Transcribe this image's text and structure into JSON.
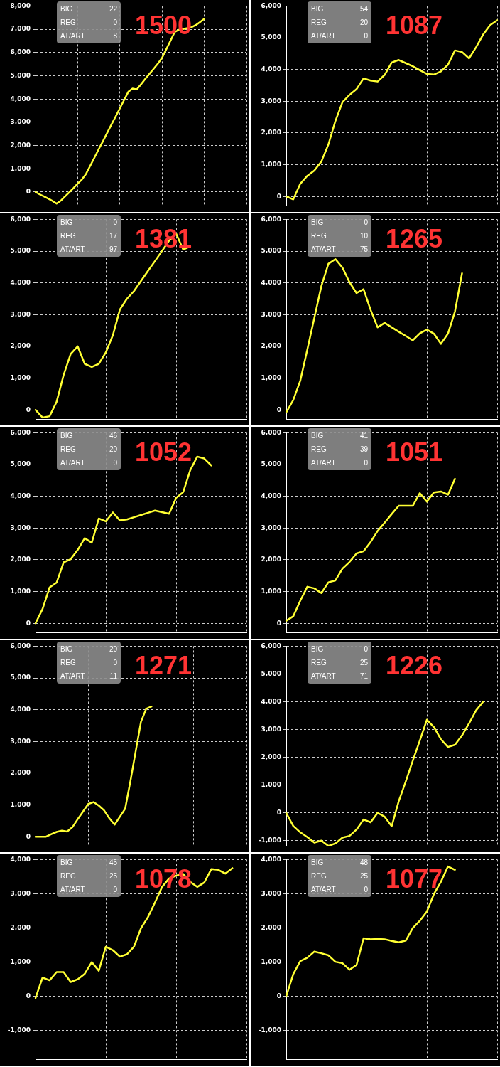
{
  "chart_data": [
    {
      "type": "line",
      "title": "1500",
      "annotations": [
        "BIG",
        "22",
        "REG",
        "0",
        "AT/ART",
        "8"
      ],
      "color": "#ffff33",
      "grid": true,
      "tick_labels": "y",
      "ylim": [
        -600,
        8000
      ],
      "yticks": [
        {
          "value": 0,
          "label": "0"
        },
        {
          "value": 1000,
          "label": "1,000"
        },
        {
          "value": 2000,
          "label": "2,000"
        },
        {
          "value": 3000,
          "label": "3,000"
        },
        {
          "value": 4000,
          "label": "4,000"
        },
        {
          "value": 5000,
          "label": "5,000"
        },
        {
          "value": 6000,
          "label": "6,000"
        },
        {
          "value": 7000,
          "label": "7,000"
        },
        {
          "value": 8000,
          "label": "8,000"
        }
      ],
      "categories": [
        null,
        null,
        null,
        null,
        null,
        null,
        null,
        null,
        null,
        null,
        null,
        null,
        null,
        null,
        null,
        null,
        null,
        null,
        null,
        null,
        null,
        null,
        null,
        null,
        null,
        null,
        null,
        null,
        null,
        null,
        null,
        null,
        null,
        null,
        null,
        null,
        null,
        null,
        null,
        null,
        null,
        null,
        null,
        null,
        null,
        null,
        null,
        null,
        null,
        null,
        null
      ],
      "values": [
        0,
        -100,
        -190,
        -280,
        -380,
        -500,
        -370,
        -190,
        -10,
        170,
        360,
        540,
        790,
        1140,
        1490,
        1850,
        2190,
        2550,
        2900,
        3250,
        3600,
        3960,
        4310,
        4450,
        4410,
        4630,
        4860,
        5080,
        5300,
        5520,
        5770,
        6140,
        6510,
        6880,
        6980,
        7010,
        7050,
        7090,
        7180,
        7310,
        7450,
        null,
        null,
        null,
        null,
        null,
        null,
        null,
        null,
        null,
        null
      ]
    },
    {
      "type": "line",
      "title": "1087",
      "annotations": [
        "BIG",
        "54",
        "REG",
        "20",
        "AT/ART",
        "0"
      ],
      "color": "#ffff33",
      "grid": true,
      "tick_labels": "y",
      "ylim": [
        -300,
        6000
      ],
      "yticks": [
        {
          "value": 0,
          "label": "0"
        },
        {
          "value": 1000,
          "label": "1,000"
        },
        {
          "value": 2000,
          "label": "2,000"
        },
        {
          "value": 3000,
          "label": "3,000"
        },
        {
          "value": 4000,
          "label": "4,000"
        },
        {
          "value": 5000,
          "label": "5,000"
        },
        {
          "value": 6000,
          "label": "6,000"
        }
      ],
      "categories": [
        null,
        null,
        null,
        null,
        null,
        null,
        null,
        null,
        null,
        null,
        null,
        null,
        null,
        null,
        null,
        null,
        null,
        null,
        null,
        null,
        null,
        null,
        null,
        null,
        null,
        null,
        null,
        null,
        null,
        null,
        null
      ],
      "values": [
        0,
        -90,
        400,
        650,
        815,
        1100,
        1640,
        2380,
        2970,
        3200,
        3380,
        3720,
        3650,
        3620,
        3830,
        4220,
        4300,
        4200,
        4100,
        3980,
        3860,
        3840,
        3940,
        4150,
        4600,
        4550,
        4350,
        4700,
        5100,
        5400,
        5550
      ]
    },
    {
      "type": "line",
      "title": "1381",
      "annotations": [
        "BIG",
        "0",
        "REG",
        "17",
        "AT/ART",
        "97"
      ],
      "color": "#ffff33",
      "grid": true,
      "tick_labels": "y",
      "ylim": [
        -300,
        6000
      ],
      "yticks": [
        {
          "value": 0,
          "label": "0"
        },
        {
          "value": 1000,
          "label": "1,000"
        },
        {
          "value": 2000,
          "label": "2,000"
        },
        {
          "value": 3000,
          "label": "3,000"
        },
        {
          "value": 4000,
          "label": "4,000"
        },
        {
          "value": 5000,
          "label": "5,000"
        },
        {
          "value": 6000,
          "label": "6,000"
        }
      ],
      "categories": [
        null,
        null,
        null,
        null,
        null,
        null,
        null,
        null,
        null,
        null,
        null,
        null,
        null,
        null,
        null,
        null,
        null,
        null,
        null,
        null,
        null,
        null,
        null,
        null,
        null,
        null,
        null,
        null,
        null,
        null,
        null
      ],
      "values": [
        0,
        -240,
        -200,
        255,
        1100,
        1760,
        2000,
        1450,
        1350,
        1450,
        1810,
        2350,
        3160,
        3500,
        3740,
        4060,
        4380,
        4690,
        5010,
        5330,
        5550,
        5050,
        5150,
        null,
        null,
        null,
        null,
        null,
        null,
        null,
        null
      ]
    },
    {
      "type": "line",
      "title": "1265",
      "annotations": [
        "BIG",
        "0",
        "REG",
        "10",
        "AT/ART",
        "75"
      ],
      "color": "#ffff33",
      "grid": true,
      "tick_labels": "y",
      "ylim": [
        -300,
        6000
      ],
      "yticks": [
        {
          "value": 0,
          "label": "0"
        },
        {
          "value": 1000,
          "label": "1,000"
        },
        {
          "value": 2000,
          "label": "2,000"
        },
        {
          "value": 3000,
          "label": "3,000"
        },
        {
          "value": 4000,
          "label": "4,000"
        },
        {
          "value": 5000,
          "label": "5,000"
        },
        {
          "value": 6000,
          "label": "6,000"
        }
      ],
      "categories": [
        null,
        null,
        null,
        null,
        null,
        null,
        null,
        null,
        null,
        null,
        null,
        null,
        null,
        null,
        null,
        null,
        null,
        null,
        null,
        null,
        null,
        null,
        null,
        null,
        null,
        null,
        null,
        null,
        null,
        null,
        null
      ],
      "values": [
        -80,
        310,
        920,
        1900,
        2900,
        3900,
        4600,
        4750,
        4480,
        4020,
        3680,
        3800,
        3150,
        2600,
        2740,
        2600,
        2460,
        2330,
        2190,
        2410,
        2530,
        2400,
        2080,
        2400,
        3100,
        4300,
        null,
        null,
        null,
        null,
        null
      ]
    },
    {
      "type": "line",
      "title": "1052",
      "annotations": [
        "BIG",
        "46",
        "REG",
        "20",
        "AT/ART",
        "0"
      ],
      "color": "#ffff33",
      "grid": true,
      "tick_labels": "y",
      "ylim": [
        -300,
        6000
      ],
      "yticks": [
        {
          "value": 0,
          "label": "0"
        },
        {
          "value": 1000,
          "label": "1,000"
        },
        {
          "value": 2000,
          "label": "2,000"
        },
        {
          "value": 3000,
          "label": "3,000"
        },
        {
          "value": 4000,
          "label": "4,000"
        },
        {
          "value": 5000,
          "label": "5,000"
        },
        {
          "value": 6000,
          "label": "6,000"
        }
      ],
      "categories": [
        null,
        null,
        null,
        null,
        null,
        null,
        null,
        null,
        null,
        null,
        null,
        null,
        null,
        null,
        null,
        null,
        null,
        null,
        null,
        null,
        null,
        null,
        null,
        null,
        null,
        null,
        null,
        null,
        null,
        null,
        null
      ],
      "values": [
        0,
        450,
        1130,
        1280,
        1920,
        2020,
        2310,
        2680,
        2540,
        3300,
        3210,
        3490,
        3240,
        3270,
        3340,
        3410,
        3480,
        3550,
        3500,
        3450,
        3950,
        4130,
        4820,
        5250,
        5190,
        4970,
        null,
        null,
        null,
        null,
        null
      ]
    },
    {
      "type": "line",
      "title": "1051",
      "annotations": [
        "BIG",
        "41",
        "REG",
        "39",
        "AT/ART",
        "0"
      ],
      "color": "#ffff33",
      "grid": true,
      "tick_labels": "y",
      "ylim": [
        -300,
        6000
      ],
      "yticks": [
        {
          "value": 0,
          "label": "0"
        },
        {
          "value": 1000,
          "label": "1,000"
        },
        {
          "value": 2000,
          "label": "2,000"
        },
        {
          "value": 3000,
          "label": "3,000"
        },
        {
          "value": 4000,
          "label": "4,000"
        },
        {
          "value": 5000,
          "label": "5,000"
        },
        {
          "value": 6000,
          "label": "6,000"
        }
      ],
      "categories": [
        null,
        null,
        null,
        null,
        null,
        null,
        null,
        null,
        null,
        null,
        null,
        null,
        null,
        null,
        null,
        null,
        null,
        null,
        null,
        null,
        null,
        null,
        null,
        null,
        null,
        null,
        null,
        null,
        null,
        null,
        null
      ],
      "values": [
        80,
        220,
        710,
        1150,
        1100,
        950,
        1290,
        1350,
        1720,
        1930,
        2200,
        2270,
        2560,
        2910,
        3170,
        3440,
        3700,
        3700,
        3700,
        4100,
        3830,
        4120,
        4150,
        4050,
        4550,
        null,
        null,
        null,
        null,
        null,
        null
      ]
    },
    {
      "type": "line",
      "title": "1271",
      "annotations": [
        "BIG",
        "20",
        "REG",
        "0",
        "AT/ART",
        "11"
      ],
      "color": "#ffff33",
      "grid": true,
      "tick_labels": "y",
      "ylim": [
        -300,
        6000
      ],
      "yticks": [
        {
          "value": 0,
          "label": "0"
        },
        {
          "value": 1000,
          "label": "1,000"
        },
        {
          "value": 2000,
          "label": "2,000"
        },
        {
          "value": 3000,
          "label": "3,000"
        },
        {
          "value": 4000,
          "label": "4,000"
        },
        {
          "value": 5000,
          "label": "5,000"
        },
        {
          "value": 6000,
          "label": "6,000"
        }
      ],
      "categories": [
        null,
        null,
        null,
        null,
        null,
        null,
        null,
        null,
        null,
        null,
        null,
        null,
        null,
        null,
        null,
        null,
        null,
        null,
        null,
        null,
        null,
        null,
        null,
        null,
        null,
        null,
        null,
        null,
        null,
        null,
        null,
        null,
        null,
        null,
        null,
        null,
        null,
        null,
        null,
        null,
        null
      ],
      "values": [
        0,
        0,
        0,
        80,
        150,
        190,
        160,
        300,
        550,
        790,
        1030,
        1090,
        980,
        830,
        580,
        380,
        630,
        880,
        1750,
        2690,
        3620,
        4030,
        4100,
        null,
        null,
        null,
        null,
        null,
        null,
        null,
        null,
        null,
        null,
        null,
        null,
        null,
        null,
        null,
        null,
        null,
        null
      ]
    },
    {
      "type": "line",
      "title": "1226",
      "annotations": [
        "BIG",
        "0",
        "REG",
        "25",
        "AT/ART",
        "71"
      ],
      "color": "#ffff33",
      "grid": true,
      "tick_labels": "y",
      "ylim": [
        -1200,
        6000
      ],
      "yticks": [
        {
          "value": -1000,
          "label": "-1,000"
        },
        {
          "value": 0,
          "label": "0"
        },
        {
          "value": 1000,
          "label": "1,000"
        },
        {
          "value": 2000,
          "label": "2,000"
        },
        {
          "value": 3000,
          "label": "3,000"
        },
        {
          "value": 4000,
          "label": "4,000"
        },
        {
          "value": 5000,
          "label": "5,000"
        },
        {
          "value": 6000,
          "label": "6,000"
        }
      ],
      "categories": [
        null,
        null,
        null,
        null,
        null,
        null,
        null,
        null,
        null,
        null,
        null,
        null,
        null,
        null,
        null,
        null,
        null,
        null,
        null,
        null,
        null,
        null,
        null,
        null,
        null,
        null,
        null,
        null,
        null,
        null,
        null
      ],
      "values": [
        0,
        -470,
        -700,
        -870,
        -1070,
        -1000,
        -1190,
        -1100,
        -890,
        -830,
        -600,
        -240,
        -340,
        0,
        -140,
        -480,
        420,
        1130,
        1880,
        2600,
        3350,
        3090,
        2650,
        2370,
        2450,
        2790,
        3220,
        3690,
        4000,
        null,
        null
      ]
    },
    {
      "type": "line",
      "title": "1078",
      "annotations": [
        "BIG",
        "45",
        "REG",
        "25",
        "AT/ART",
        "0"
      ],
      "color": "#ffff33",
      "grid": true,
      "tick_labels": "y",
      "ylim": [
        -1850,
        4000
      ],
      "yticks": [
        {
          "value": -1000,
          "label": "-1,000"
        },
        {
          "value": 0,
          "label": "0"
        },
        {
          "value": 1000,
          "label": "1,000"
        },
        {
          "value": 2000,
          "label": "2,000"
        },
        {
          "value": 3000,
          "label": "3,000"
        },
        {
          "value": 4000,
          "label": "4,000"
        }
      ],
      "categories": [
        null,
        null,
        null,
        null,
        null,
        null,
        null,
        null,
        null,
        null,
        null,
        null,
        null,
        null,
        null,
        null,
        null,
        null,
        null,
        null,
        null,
        null,
        null,
        null,
        null,
        null,
        null,
        null,
        null,
        null,
        null
      ],
      "values": [
        -50,
        550,
        470,
        710,
        710,
        420,
        500,
        660,
        1000,
        750,
        1450,
        1350,
        1160,
        1230,
        1450,
        1990,
        2320,
        2750,
        3200,
        3450,
        3530,
        3580,
        3350,
        3200,
        3330,
        3720,
        3700,
        3590,
        3750,
        null,
        null
      ]
    },
    {
      "type": "line",
      "title": "1077",
      "annotations": [
        "BIG",
        "48",
        "REG",
        "25",
        "AT/ART",
        "0"
      ],
      "color": "#ffff33",
      "grid": true,
      "tick_labels": "y",
      "ylim": [
        -1850,
        4000
      ],
      "yticks": [
        {
          "value": -1000,
          "label": "-1,000"
        },
        {
          "value": 0,
          "label": "0"
        },
        {
          "value": 1000,
          "label": "1,000"
        },
        {
          "value": 2000,
          "label": "2,000"
        },
        {
          "value": 3000,
          "label": "3,000"
        },
        {
          "value": 4000,
          "label": "4,000"
        }
      ],
      "categories": [
        null,
        null,
        null,
        null,
        null,
        null,
        null,
        null,
        null,
        null,
        null,
        null,
        null,
        null,
        null,
        null,
        null,
        null,
        null,
        null,
        null,
        null,
        null,
        null,
        null,
        null,
        null,
        null,
        null,
        null,
        null
      ],
      "values": [
        0,
        650,
        1030,
        1130,
        1310,
        1260,
        1200,
        1010,
        970,
        780,
        920,
        1700,
        1670,
        1680,
        1670,
        1620,
        1580,
        1630,
        2000,
        2210,
        2480,
        2990,
        3350,
        3800,
        3700,
        null,
        null,
        null,
        null,
        null,
        null
      ]
    }
  ]
}
